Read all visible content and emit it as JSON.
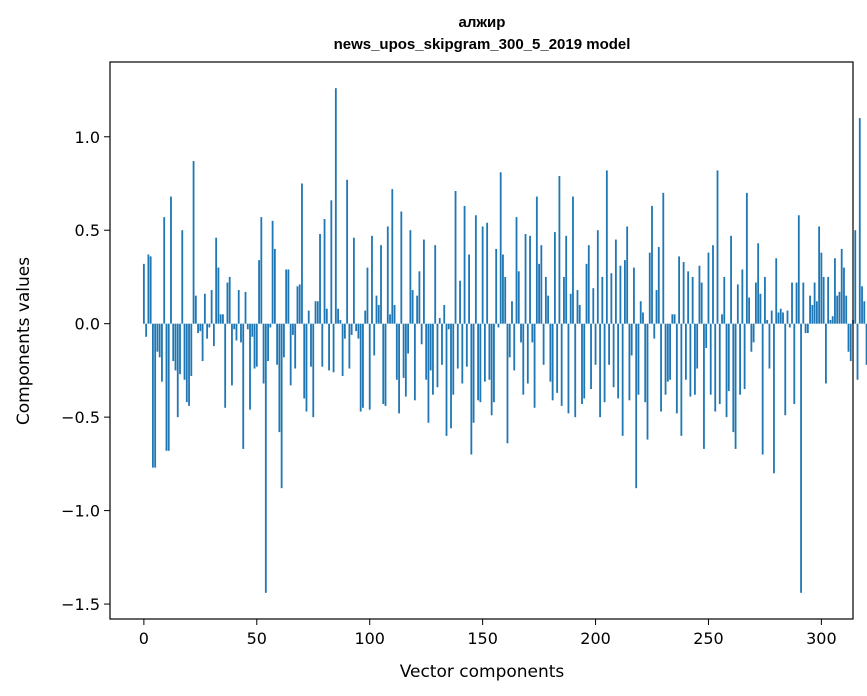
{
  "chart_data": {
    "type": "bar",
    "title": "алжир",
    "subtitle": "news_upos_skipgram_300_5_2019 model",
    "xlabel": "Vector components",
    "ylabel": "Components values",
    "xlim": [
      -15,
      314
    ],
    "ylim": [
      -1.58,
      1.4
    ],
    "xticks": [
      0,
      50,
      100,
      150,
      200,
      250,
      300
    ],
    "xtick_labels": [
      "0",
      "50",
      "100",
      "150",
      "200",
      "250",
      "300"
    ],
    "yticks": [
      -1.5,
      -1.0,
      -0.5,
      0.0,
      0.5,
      1.0
    ],
    "ytick_labels": [
      "−1.5",
      "−1.0",
      "−0.5",
      "0.0",
      "0.5",
      "1.0"
    ],
    "grid": false,
    "color": "#1f77b4",
    "values": [
      0.32,
      -0.07,
      0.37,
      0.36,
      -0.77,
      -0.77,
      -0.15,
      -0.18,
      -0.31,
      0.57,
      -0.68,
      -0.68,
      0.68,
      -0.2,
      -0.25,
      -0.5,
      -0.27,
      0.5,
      -0.3,
      -0.42,
      -0.44,
      -0.28,
      0.87,
      0.15,
      -0.05,
      -0.04,
      -0.2,
      0.16,
      -0.08,
      -0.02,
      0.18,
      -0.12,
      0.46,
      0.3,
      0.05,
      0.05,
      -0.45,
      0.22,
      0.25,
      -0.33,
      -0.03,
      -0.09,
      0.18,
      -0.1,
      -0.67,
      0.17,
      -0.03,
      -0.46,
      -0.07,
      -0.24,
      -0.23,
      0.34,
      0.57,
      -0.32,
      -1.44,
      -0.2,
      -0.02,
      0.55,
      0.4,
      -0.22,
      -0.58,
      -0.88,
      -0.18,
      0.29,
      0.29,
      -0.33,
      -0.06,
      -0.24,
      0.2,
      0.21,
      0.75,
      -0.4,
      -0.47,
      0.07,
      -0.23,
      -0.5,
      0.12,
      0.12,
      0.48,
      -0.23,
      0.56,
      0.08,
      -0.25,
      0.66,
      -0.26,
      1.26,
      0.08,
      0.02,
      -0.28,
      -0.08,
      0.77,
      -0.24,
      -0.06,
      0.46,
      -0.04,
      -0.08,
      -0.47,
      -0.45,
      0.07,
      0.3,
      -0.46,
      0.47,
      -0.17,
      0.15,
      0.1,
      0.42,
      -0.43,
      -0.44,
      0.52,
      0.05,
      0.72,
      0.1,
      -0.3,
      -0.48,
      0.6,
      -0.29,
      -0.39,
      -0.16,
      0.5,
      0.18,
      -0.41,
      0.15,
      0.28,
      -0.11,
      0.45,
      -0.3,
      -0.53,
      -0.25,
      -0.38,
      0.42,
      -0.34,
      0.03,
      -0.22,
      0.1,
      -0.6,
      -0.03,
      -0.56,
      -0.38,
      0.71,
      -0.24,
      0.23,
      -0.32,
      0.63,
      -0.23,
      0.37,
      -0.7,
      -0.53,
      0.58,
      -0.41,
      -0.42,
      0.52,
      -0.31,
      0.54,
      -0.3,
      -0.49,
      -0.42,
      0.4,
      -0.02,
      0.81,
      0.37,
      0.25,
      -0.64,
      -0.18,
      0.12,
      -0.25,
      0.57,
      0.28,
      -0.1,
      -0.38,
      0.48,
      -0.32,
      0.47,
      -0.1,
      -0.45,
      0.68,
      0.32,
      0.42,
      -0.22,
      0.25,
      0.15,
      -0.31,
      -0.41,
      0.49,
      -0.37,
      0.79,
      -0.44,
      0.25,
      0.47,
      -0.48,
      0.16,
      0.68,
      -0.5,
      0.18,
      0.1,
      -0.43,
      -0.4,
      0.32,
      0.42,
      -0.35,
      0.19,
      -0.22,
      0.5,
      -0.5,
      0.25,
      -0.42,
      0.82,
      -0.22,
      0.27,
      -0.34,
      0.45,
      -0.4,
      0.31,
      -0.6,
      0.34,
      0.52,
      -0.41,
      -0.17,
      0.3,
      -0.88,
      -0.38,
      0.12,
      0.06,
      -0.42,
      -0.62,
      0.38,
      0.63,
      -0.08,
      0.18,
      0.41,
      -0.47,
      0.7,
      -0.38,
      -0.31,
      -0.3,
      0.05,
      0.05,
      -0.48,
      0.36,
      -0.6,
      0.33,
      -0.3,
      0.28,
      -0.39,
      0.25,
      -0.38,
      -0.24,
      0.31,
      0.22,
      -0.67,
      -0.13,
      0.38,
      -0.38,
      0.42,
      -0.47,
      0.82,
      -0.43,
      0.05,
      0.25,
      -0.5,
      -0.36,
      0.47,
      -0.58,
      -0.67,
      0.21,
      -0.38,
      0.29,
      -0.35,
      0.7,
      0.14,
      -0.15,
      -0.1,
      0.22,
      0.43,
      0.16,
      -0.7,
      0.25,
      0.02,
      -0.24,
      0.07,
      -0.8,
      0.35,
      0.06,
      0.08,
      0.06,
      -0.49,
      0.07,
      -0.02,
      0.22,
      -0.43,
      0.22,
      0.58,
      -1.44,
      0.22,
      -0.05,
      -0.05,
      0.15,
      0.1,
      0.22,
      0.12,
      0.52,
      0.38,
      0.25,
      -0.32,
      0.25,
      0.02,
      0.04,
      0.35,
      0.15,
      0.17,
      0.4,
      0.3,
      0.15,
      -0.15,
      -0.2,
      0.02,
      0.5,
      -0.3,
      1.1,
      0.2,
      0.12,
      -0.22
    ]
  }
}
